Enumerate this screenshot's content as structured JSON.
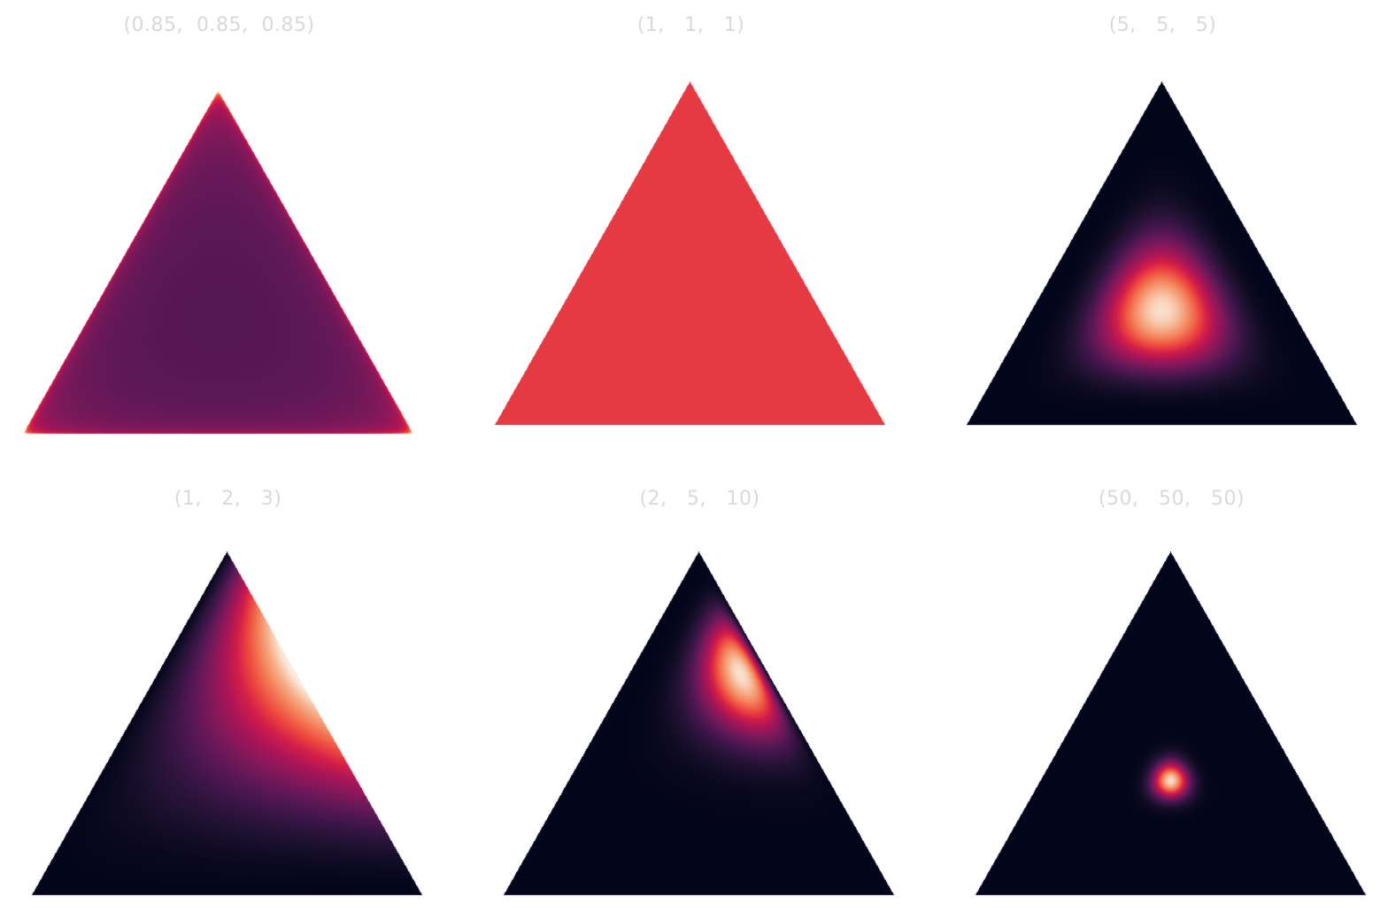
{
  "figure": {
    "colormap": "rocket",
    "background": "#ffffff",
    "title_color": "#d9d9d9"
  },
  "chart_data": [
    {
      "type": "heatmap",
      "title": "(0.85,  0.85,  0.85)",
      "alpha": [
        0.85,
        0.85,
        0.85
      ],
      "vmax": 6.0
    },
    {
      "type": "heatmap",
      "title": "(1,   1,   1)",
      "alpha": [
        1,
        1,
        1
      ],
      "vmax": 3.0
    },
    {
      "type": "heatmap",
      "title": "(5,   5,   5)",
      "alpha": [
        5,
        5,
        5
      ],
      "vmax": 0
    },
    {
      "type": "heatmap",
      "title": "(1,   2,   3)",
      "alpha": [
        1,
        2,
        3
      ],
      "vmax": 0
    },
    {
      "type": "heatmap",
      "title": "(2,   5,   10)",
      "alpha": [
        2,
        5,
        10
      ],
      "vmax": 0
    },
    {
      "type": "heatmap",
      "title": "(50,   50,   50)",
      "alpha": [
        50,
        50,
        50
      ],
      "vmax": 0
    }
  ]
}
